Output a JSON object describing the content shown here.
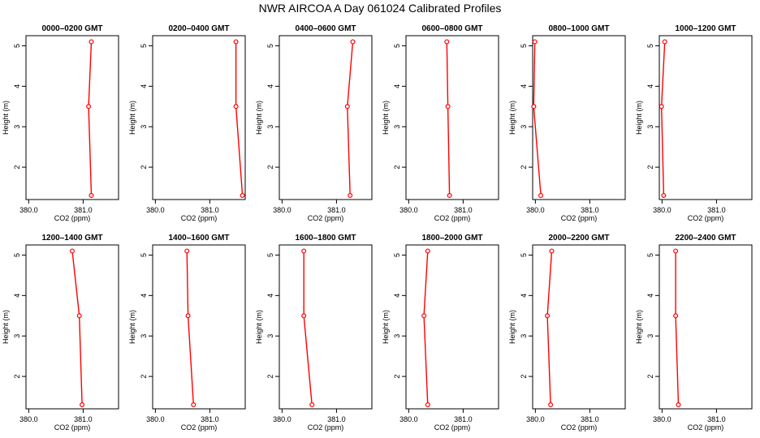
{
  "figure_title": "NWR AIRCOA A  Day 061024  Calibrated Profiles",
  "colors": {
    "line": "#ff0000",
    "marker": "#ff0000",
    "axis": "#000000"
  },
  "chart_data": [
    {
      "type": "line",
      "title": "0000–0200 GMT",
      "xlabel": "CO2 (ppm)",
      "ylabel": "Height (m)",
      "xlim": [
        379.95,
        381.65
      ],
      "ylim": [
        1.2,
        5.25
      ],
      "xticks": [
        "380.0",
        "381.0"
      ],
      "yticks": [
        "2",
        "3",
        "4",
        "5"
      ],
      "x": [
        381.15,
        381.1,
        381.15
      ],
      "y": [
        5.1,
        3.5,
        1.3
      ]
    },
    {
      "type": "line",
      "title": "0200–0400 GMT",
      "xlabel": "CO2 (ppm)",
      "ylabel": "Height (m)",
      "xlim": [
        379.95,
        381.65
      ],
      "ylim": [
        1.2,
        5.25
      ],
      "xticks": [
        "380.0",
        "381.0"
      ],
      "yticks": [
        "2",
        "3",
        "4",
        "5"
      ],
      "x": [
        381.48,
        381.48,
        381.6
      ],
      "y": [
        5.1,
        3.5,
        1.3
      ]
    },
    {
      "type": "line",
      "title": "0400–0600 GMT",
      "xlabel": "CO2 (ppm)",
      "ylabel": "Height (m)",
      "xlim": [
        379.95,
        381.65
      ],
      "ylim": [
        1.2,
        5.25
      ],
      "xticks": [
        "380.0",
        "381.0"
      ],
      "yticks": [
        "2",
        "3",
        "4",
        "5"
      ],
      "x": [
        381.3,
        381.2,
        381.25
      ],
      "y": [
        5.1,
        3.5,
        1.3
      ]
    },
    {
      "type": "line",
      "title": "0600–0800 GMT",
      "xlabel": "CO2 (ppm)",
      "ylabel": "Height (m)",
      "xlim": [
        379.95,
        381.65
      ],
      "ylim": [
        1.2,
        5.25
      ],
      "xticks": [
        "380.0",
        "381.0"
      ],
      "yticks": [
        "2",
        "3",
        "4",
        "5"
      ],
      "x": [
        380.7,
        380.72,
        380.75
      ],
      "y": [
        5.1,
        3.5,
        1.3
      ]
    },
    {
      "type": "line",
      "title": "0800–1000 GMT",
      "xlabel": "CO2 (ppm)",
      "ylabel": "Height (m)",
      "xlim": [
        379.95,
        381.65
      ],
      "ylim": [
        1.2,
        5.25
      ],
      "xticks": [
        "380.0",
        "381.0"
      ],
      "yticks": [
        "2",
        "3",
        "4",
        "5"
      ],
      "x": [
        379.99,
        379.97,
        380.1
      ],
      "y": [
        5.1,
        3.5,
        1.3
      ]
    },
    {
      "type": "line",
      "title": "1000–1200 GMT",
      "xlabel": "CO2 (ppm)",
      "ylabel": "Height (m)",
      "xlim": [
        379.95,
        381.65
      ],
      "ylim": [
        1.2,
        5.25
      ],
      "xticks": [
        "380.0",
        "381.0"
      ],
      "yticks": [
        "2",
        "3",
        "4",
        "5"
      ],
      "x": [
        380.05,
        379.99,
        380.03
      ],
      "y": [
        5.1,
        3.5,
        1.3
      ]
    },
    {
      "type": "line",
      "title": "1200–1400 GMT",
      "xlabel": "CO2 (ppm)",
      "ylabel": "Height (m)",
      "xlim": [
        379.95,
        381.65
      ],
      "ylim": [
        1.2,
        5.25
      ],
      "xticks": [
        "380.0",
        "381.0"
      ],
      "yticks": [
        "2",
        "3",
        "4",
        "5"
      ],
      "x": [
        380.8,
        380.93,
        380.98
      ],
      "y": [
        5.1,
        3.5,
        1.3
      ]
    },
    {
      "type": "line",
      "title": "1400–1600 GMT",
      "xlabel": "CO2 (ppm)",
      "ylabel": "Height (m)",
      "xlim": [
        379.95,
        381.65
      ],
      "ylim": [
        1.2,
        5.25
      ],
      "xticks": [
        "380.0",
        "381.0"
      ],
      "yticks": [
        "2",
        "3",
        "4",
        "5"
      ],
      "x": [
        380.58,
        380.6,
        380.7
      ],
      "y": [
        5.1,
        3.5,
        1.3
      ]
    },
    {
      "type": "line",
      "title": "1600–1800 GMT",
      "xlabel": "CO2 (ppm)",
      "ylabel": "Height (m)",
      "xlim": [
        379.95,
        381.65
      ],
      "ylim": [
        1.2,
        5.25
      ],
      "xticks": [
        "380.0",
        "381.0"
      ],
      "yticks": [
        "2",
        "3",
        "4",
        "5"
      ],
      "x": [
        380.4,
        380.4,
        380.55
      ],
      "y": [
        5.1,
        3.5,
        1.3
      ]
    },
    {
      "type": "line",
      "title": "1800–2000 GMT",
      "xlabel": "CO2 (ppm)",
      "ylabel": "Height (m)",
      "xlim": [
        379.95,
        381.65
      ],
      "ylim": [
        1.2,
        5.25
      ],
      "xticks": [
        "380.0",
        "381.0"
      ],
      "yticks": [
        "2",
        "3",
        "4",
        "5"
      ],
      "x": [
        380.35,
        380.28,
        380.35
      ],
      "y": [
        5.1,
        3.5,
        1.3
      ]
    },
    {
      "type": "line",
      "title": "2000–2200 GMT",
      "xlabel": "CO2 (ppm)",
      "ylabel": "Height (m)",
      "xlim": [
        379.95,
        381.65
      ],
      "ylim": [
        1.2,
        5.25
      ],
      "xticks": [
        "380.0",
        "381.0"
      ],
      "yticks": [
        "2",
        "3",
        "4",
        "5"
      ],
      "x": [
        380.3,
        380.22,
        380.28
      ],
      "y": [
        5.1,
        3.5,
        1.3
      ]
    },
    {
      "type": "line",
      "title": "2200–2400 GMT",
      "xlabel": "CO2 (ppm)",
      "ylabel": "Height (m)",
      "xlim": [
        379.95,
        381.65
      ],
      "ylim": [
        1.2,
        5.25
      ],
      "xticks": [
        "380.0",
        "381.0"
      ],
      "yticks": [
        "2",
        "3",
        "4",
        "5"
      ],
      "x": [
        380.25,
        380.25,
        380.3
      ],
      "y": [
        5.1,
        3.5,
        1.3
      ]
    }
  ]
}
